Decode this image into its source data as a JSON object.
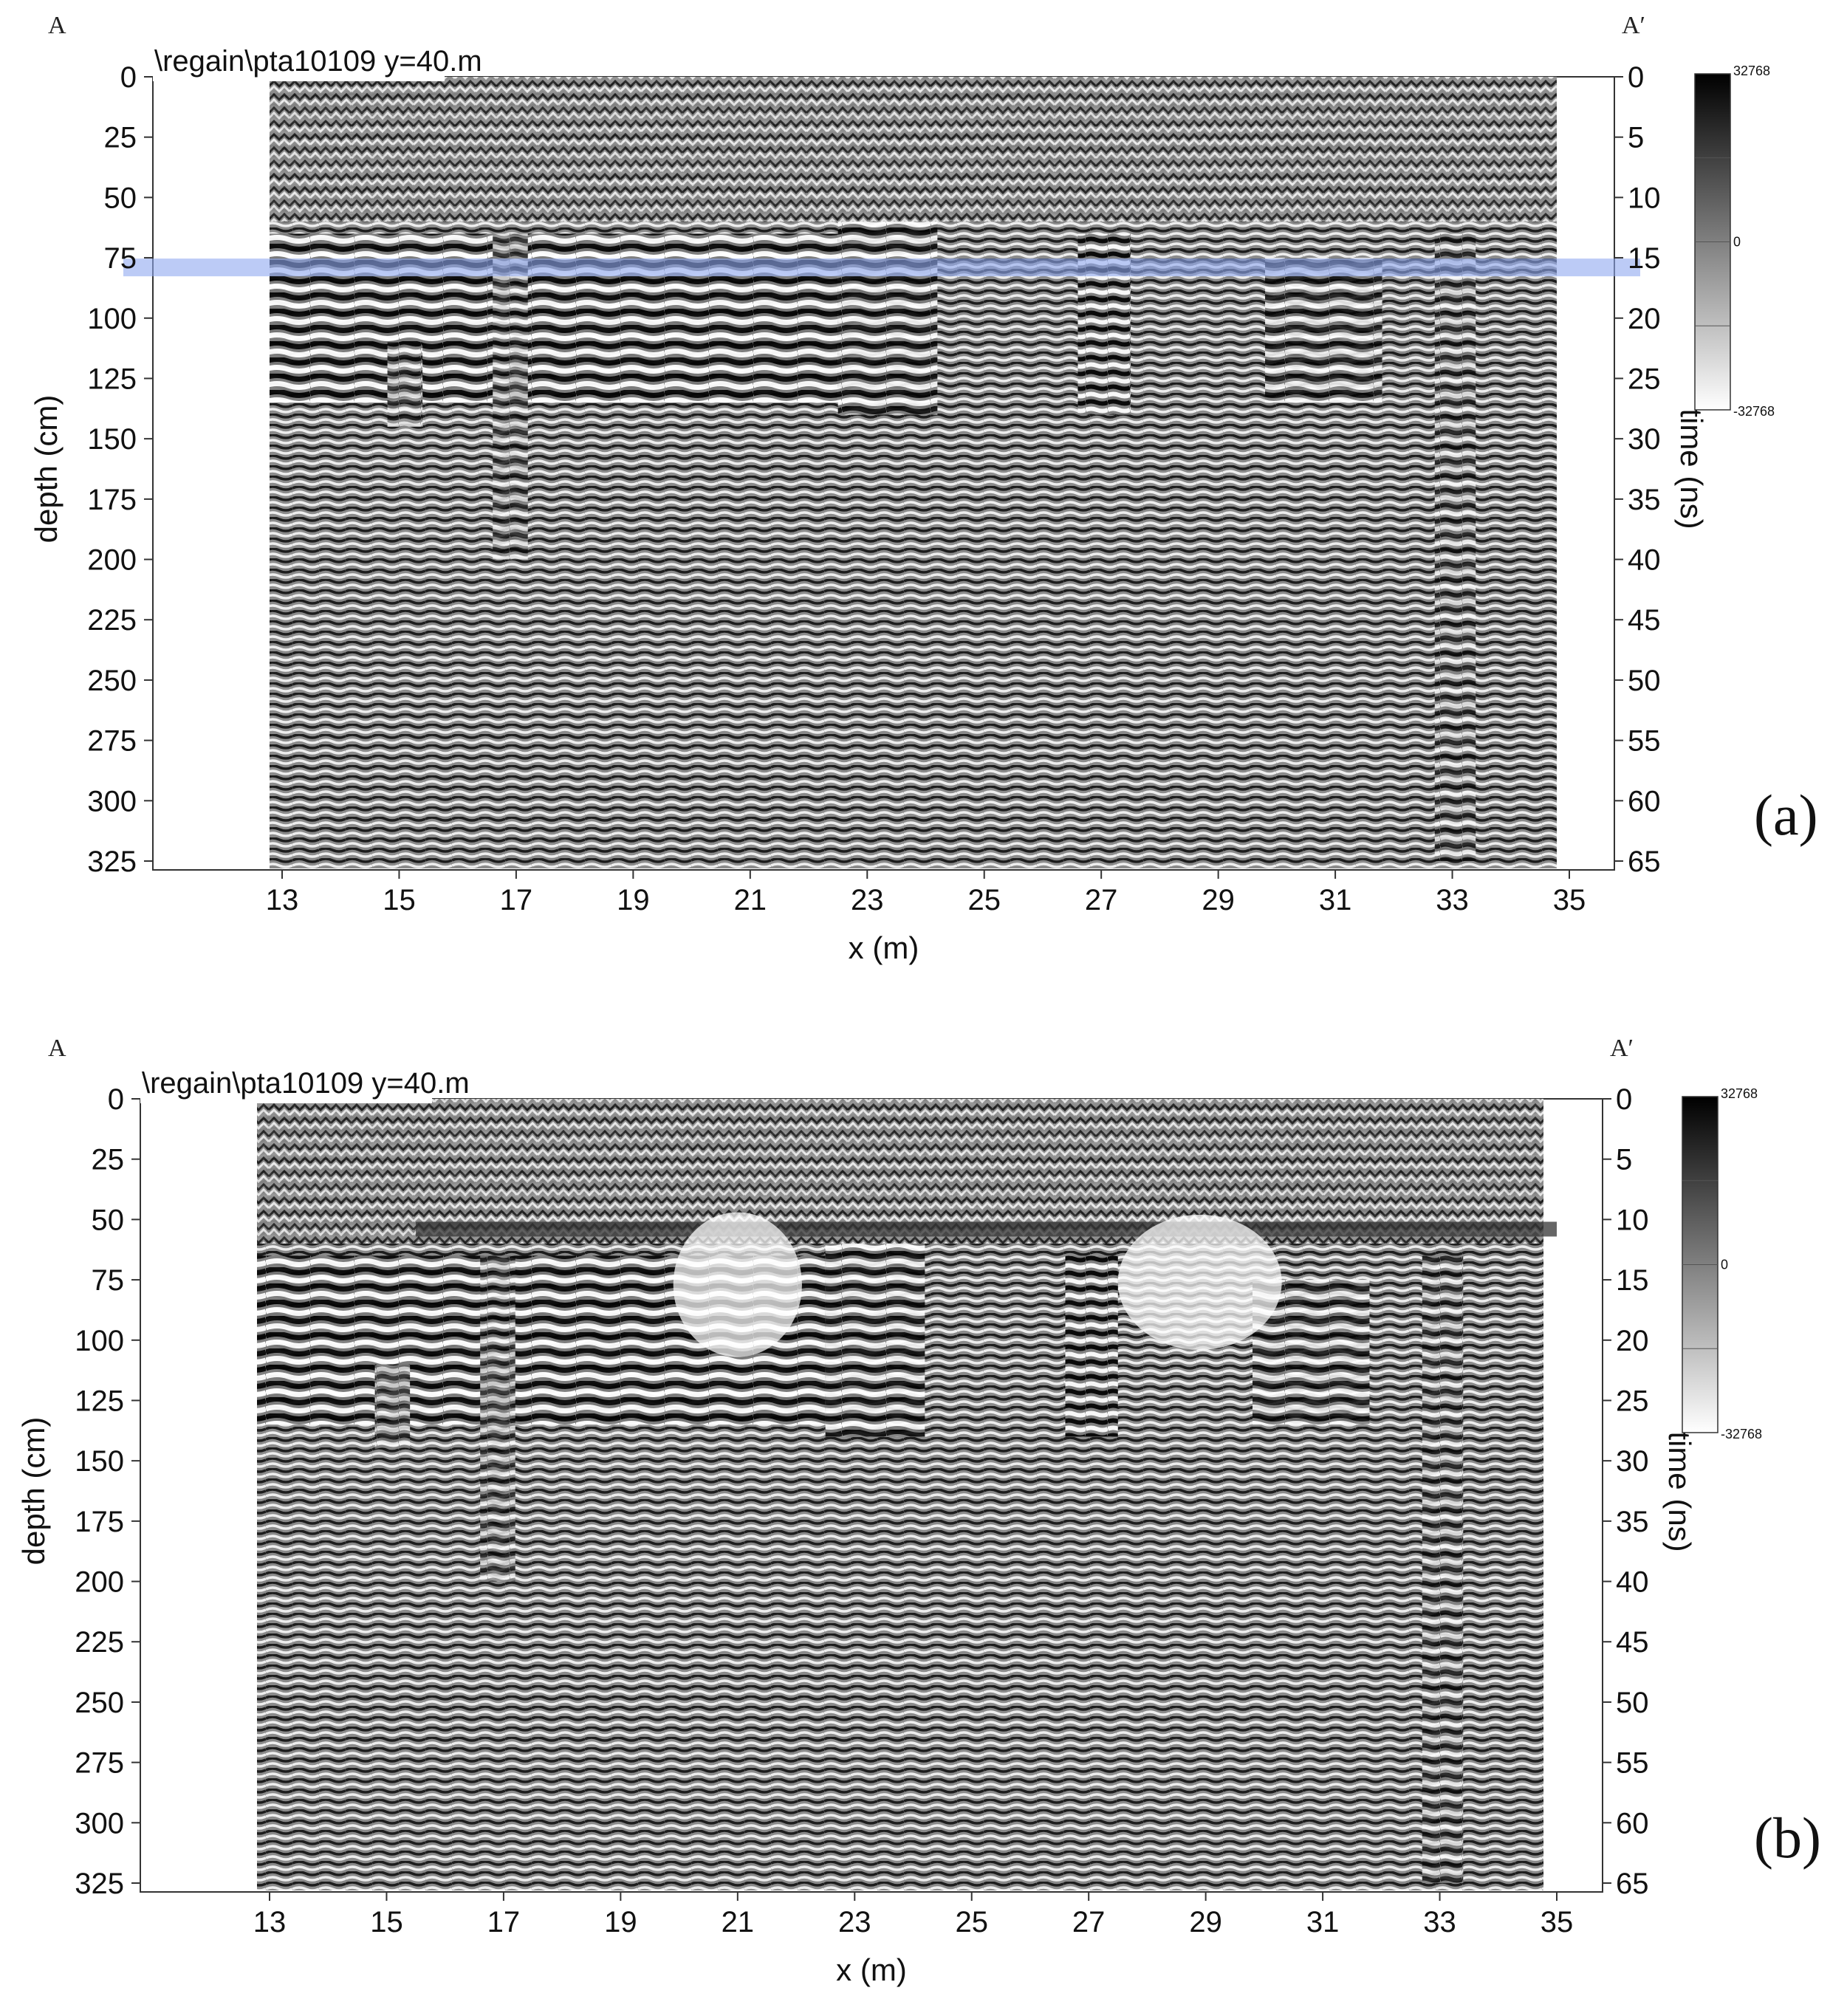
{
  "chart_data": [
    {
      "type": "heatmap",
      "panel_label": "(a)",
      "title": "\\regain\\pta10109  y=40.m",
      "corner_left": "A",
      "corner_right": "A′",
      "xlabel": "x (m)",
      "ylabel": "depth (cm)",
      "ylabel_right": "time (ns)",
      "x_ticks": [
        "13",
        "15",
        "17",
        "19",
        "21",
        "23",
        "25",
        "27",
        "29",
        "31",
        "33",
        "35"
      ],
      "y_ticks": [
        "0",
        "25",
        "50",
        "75",
        "100",
        "125",
        "150",
        "175",
        "200",
        "225",
        "250",
        "275",
        "300",
        "325"
      ],
      "y_right_ticks": [
        "0",
        "5",
        "10",
        "15",
        "20",
        "25",
        "30",
        "35",
        "40",
        "45",
        "50",
        "55",
        "60",
        "65"
      ],
      "xlim": [
        11,
        36
      ],
      "ylim": [
        0,
        330
      ],
      "data_x_range": [
        13,
        35
      ],
      "colorbar": {
        "ticks": [
          "32768",
          "0",
          "-32768"
        ],
        "range": [
          -32768,
          32768
        ],
        "colormap": "gray_r"
      },
      "annotations": [
        {
          "type": "horizontal-band",
          "depth_cm": 79,
          "x_range": [
            11,
            36
          ],
          "color": "#8fa8f0"
        }
      ]
    },
    {
      "type": "heatmap",
      "panel_label": "(b)",
      "title": "\\regain\\pta10109  y=40.m",
      "corner_left": "A",
      "corner_right": "A′",
      "xlabel": "x (m)",
      "ylabel": "depth (cm)",
      "ylabel_right": "time (ns)",
      "x_ticks": [
        "13",
        "15",
        "17",
        "19",
        "21",
        "23",
        "25",
        "27",
        "29",
        "31",
        "33",
        "35"
      ],
      "y_ticks": [
        "0",
        "25",
        "50",
        "75",
        "100",
        "125",
        "150",
        "175",
        "200",
        "225",
        "250",
        "275",
        "300",
        "325"
      ],
      "y_right_ticks": [
        "0",
        "5",
        "10",
        "15",
        "20",
        "25",
        "30",
        "35",
        "40",
        "45",
        "50",
        "55",
        "60",
        "65"
      ],
      "xlim": [
        11,
        36
      ],
      "ylim": [
        0,
        330
      ],
      "data_x_range": [
        13,
        35
      ],
      "colorbar": {
        "ticks": [
          "32768",
          "0",
          "-32768"
        ],
        "range": [
          -32768,
          32768
        ],
        "colormap": "gray_r"
      },
      "annotations": [
        {
          "type": "horizontal-band",
          "depth_cm": 54,
          "x_range": [
            15.5,
            35
          ],
          "color": "#333333"
        },
        {
          "type": "ellipse",
          "center_x": 21,
          "center_depth_cm": 77,
          "width_m": 2.2,
          "height_cm": 60,
          "color": "#ffffff"
        },
        {
          "type": "ellipse",
          "center_x": 28.9,
          "center_depth_cm": 76,
          "width_m": 2.8,
          "height_cm": 56,
          "color": "#ffffff"
        }
      ]
    }
  ]
}
